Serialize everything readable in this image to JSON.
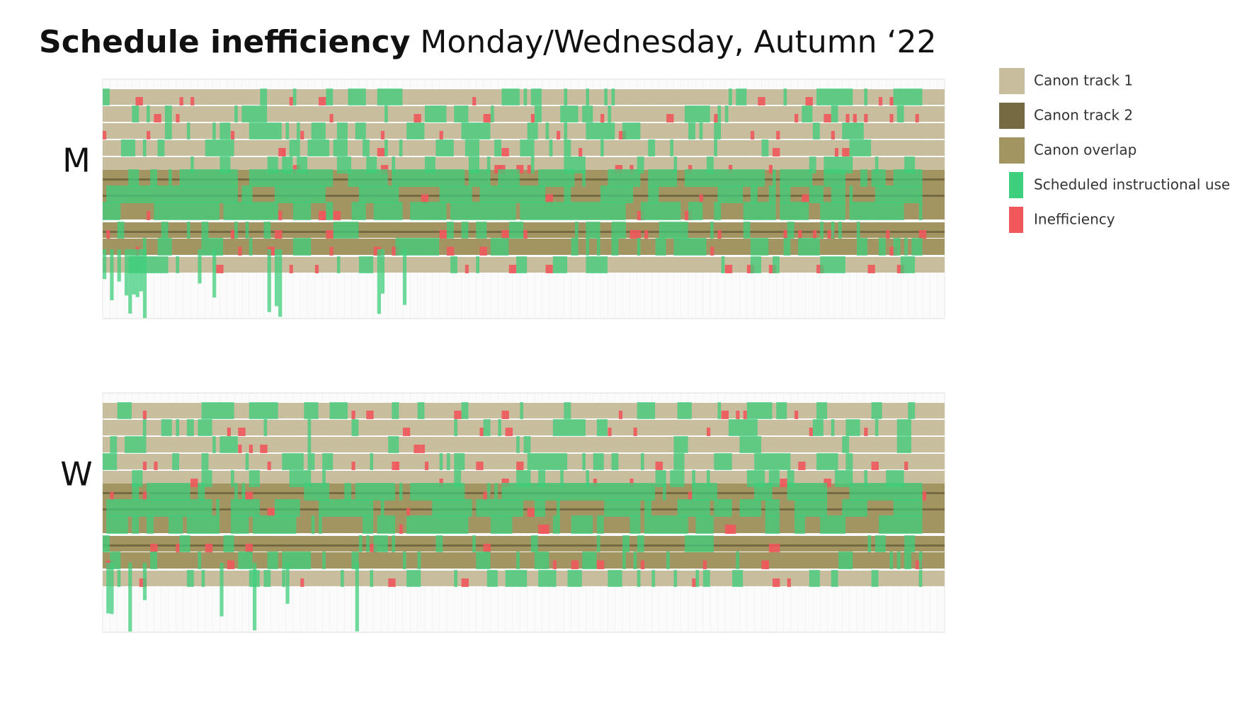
{
  "title_bold": "Schedule inefficiency",
  "title_rest": "Monday/Wednesday, Autumn ‘22",
  "panels": [
    {
      "label": "M"
    },
    {
      "label": "W"
    }
  ],
  "legend": [
    {
      "label": "Canon track 1",
      "color": "#c8bd9d"
    },
    {
      "label": "Canon track 2",
      "color": "#756a42"
    },
    {
      "label": "Canon overlap",
      "color": "#a39562"
    },
    {
      "label": "Scheduled instructional use",
      "color": "#3ecf7c"
    },
    {
      "label": "Inefficiency",
      "color": "#f0585c"
    }
  ]
}
